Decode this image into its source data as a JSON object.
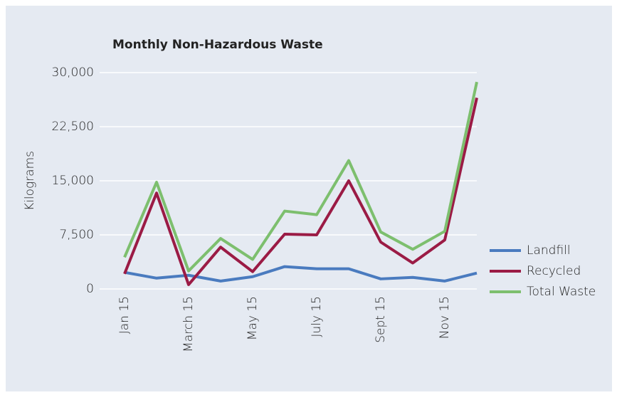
{
  "chart_data": {
    "type": "line",
    "title": "Monthly Non-Hazardous Waste",
    "y_label": "Kilograms",
    "categories": [
      "Jan 15",
      null,
      "March 15",
      null,
      "May 15",
      null,
      "July 15",
      null,
      "Sept 15",
      null,
      "Nov 15",
      null
    ],
    "series": [
      {
        "name": "Landfill",
        "color": "#4a7bbf",
        "values": [
          2300,
          1500,
          1900,
          1100,
          1700,
          3100,
          2800,
          2800,
          1400,
          1600,
          1100,
          2200
        ]
      },
      {
        "name": "Recycled",
        "color": "#9b1b45",
        "values": [
          2100,
          13300,
          600,
          5800,
          2400,
          7600,
          7500,
          15000,
          6500,
          3600,
          6800,
          26500
        ]
      },
      {
        "name": "Total Waste",
        "color": "#7dbf6e",
        "values": [
          4400,
          14800,
          2500,
          7000,
          4100,
          10800,
          10300,
          17800,
          7900,
          5500,
          8000,
          28700
        ]
      }
    ],
    "ylim": [
      0,
      30000
    ],
    "yticks": [
      0,
      {
        "value": 7500,
        "label": "7,500"
      },
      {
        "value": 15000,
        "label": "15,000"
      },
      {
        "value": 22500,
        "label": "22,500"
      },
      {
        "value": 30000,
        "label": "30,000"
      }
    ],
    "grid": true,
    "legend": "right"
  }
}
